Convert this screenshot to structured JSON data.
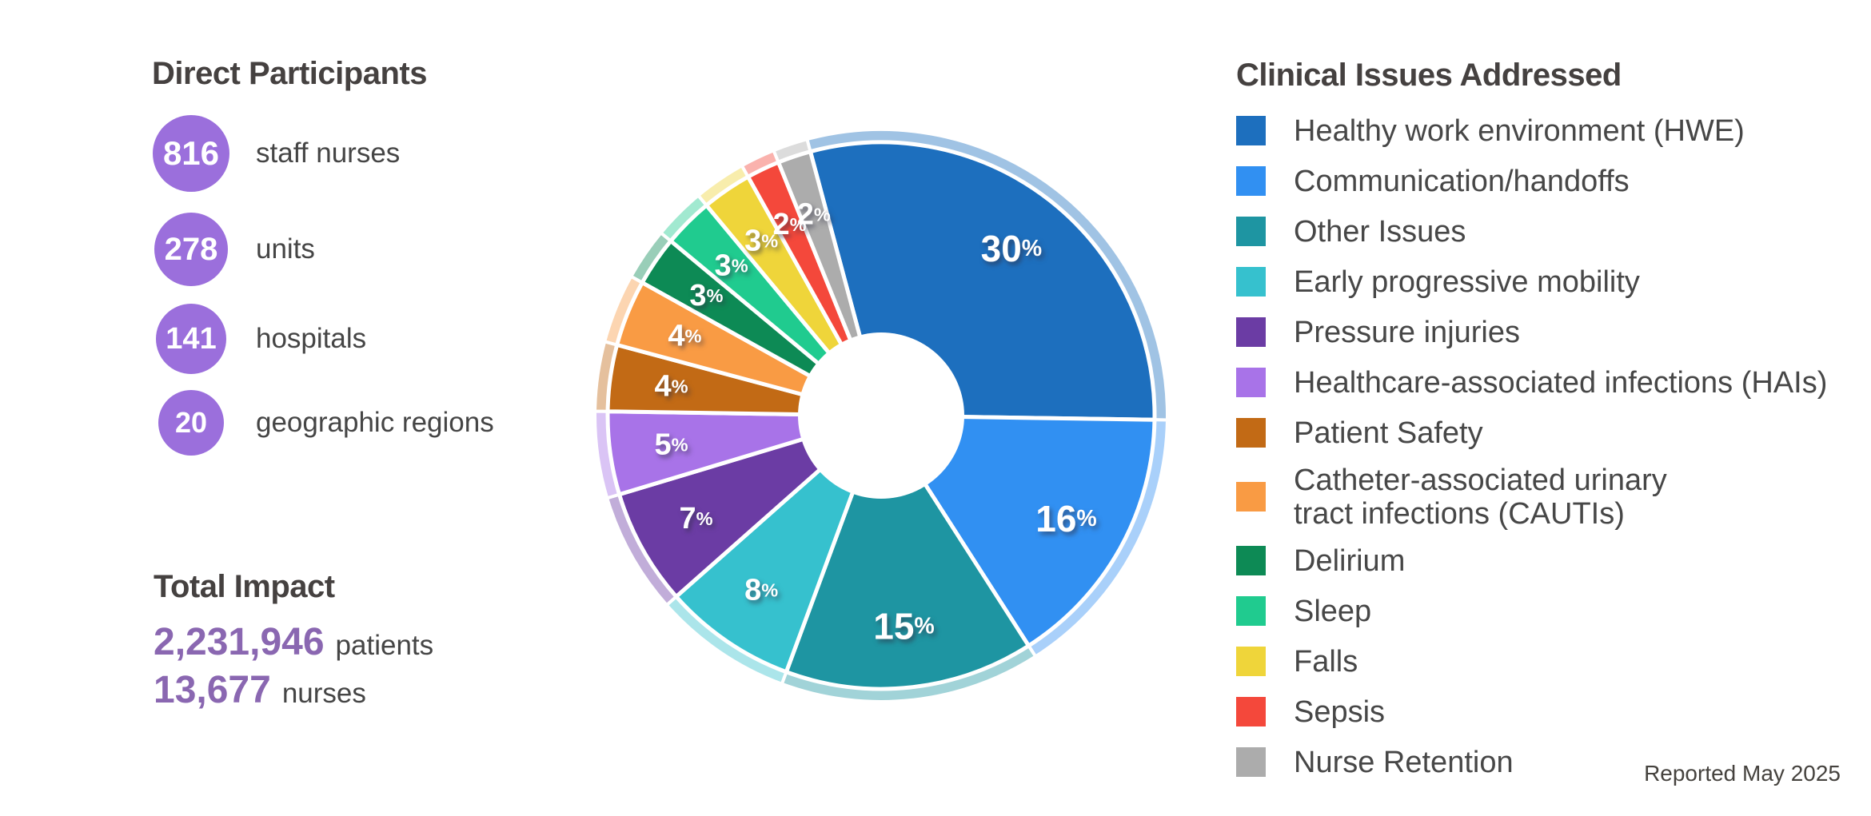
{
  "left_panel": {
    "title": "Direct Participants",
    "stats": [
      {
        "value": "816",
        "label": "staff nurses"
      },
      {
        "value": "278",
        "label": "units"
      },
      {
        "value": "141",
        "label": "hospitals"
      },
      {
        "value": "20",
        "label": "geographic regions"
      }
    ],
    "circle_color": "#9B6FDC",
    "total_impact": {
      "title": "Total Impact",
      "lines": [
        {
          "value": "2,231,946",
          "unit": "patients"
        },
        {
          "value": "13,677",
          "unit": "nurses"
        }
      ],
      "value_color": "#8A67B1"
    }
  },
  "chart_data": {
    "type": "pie",
    "donut": true,
    "title": "Clinical Issues Addressed",
    "unit": "%",
    "start_angle_deg": -15,
    "legend_position": "right",
    "categories": [
      "Healthy work environment (HWE)",
      "Communication/handoffs",
      "Other Issues",
      "Early progressive mobility",
      "Pressure injuries",
      "Healthcare-associated infections (HAIs)",
      "Patient Safety",
      "Catheter-associated urinary\ntract infections (CAUTIs)",
      "Delirium",
      "Sleep",
      "Falls",
      "Sepsis",
      "Nurse Retention"
    ],
    "values": [
      30,
      16,
      15,
      8,
      7,
      5,
      4,
      4,
      3,
      3,
      3,
      2,
      2
    ],
    "colors": [
      "#1D6FBE",
      "#3190F2",
      "#1E95A2",
      "#36C1CE",
      "#6B3CA4",
      "#A873E8",
      "#C26A15",
      "#F99B44",
      "#0D8A55",
      "#20CB8F",
      "#EFD53A",
      "#F4483B",
      "#ACACAC"
    ]
  },
  "footer": {
    "reported": "Reported May 2025"
  }
}
